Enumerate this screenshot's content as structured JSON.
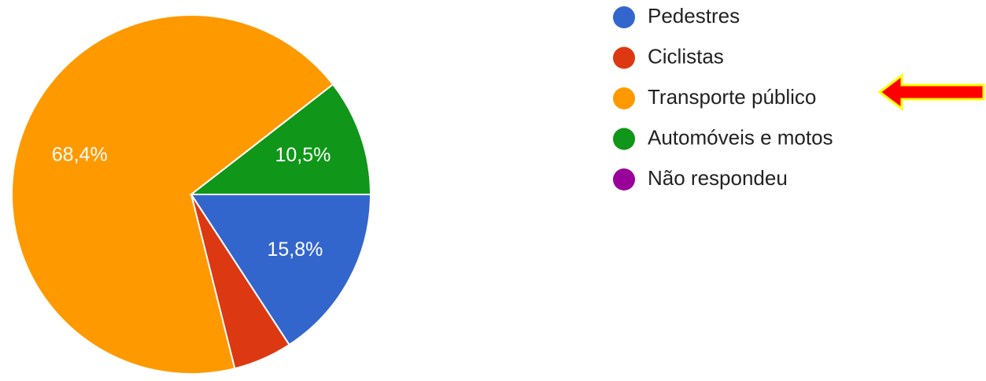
{
  "chart_data": {
    "type": "pie",
    "categories": [
      "Pedestres",
      "Ciclistas",
      "Transporte público",
      "Automóveis e motos",
      "Não respondeu"
    ],
    "values": [
      15.8,
      5.3,
      68.4,
      10.5,
      0
    ],
    "value_labels": [
      "15,8%",
      null,
      "68,4%",
      "10,5%",
      null
    ],
    "colors": [
      "#3366cc",
      "#dc3912",
      "#ff9900",
      "#109618",
      "#990099"
    ]
  }
}
